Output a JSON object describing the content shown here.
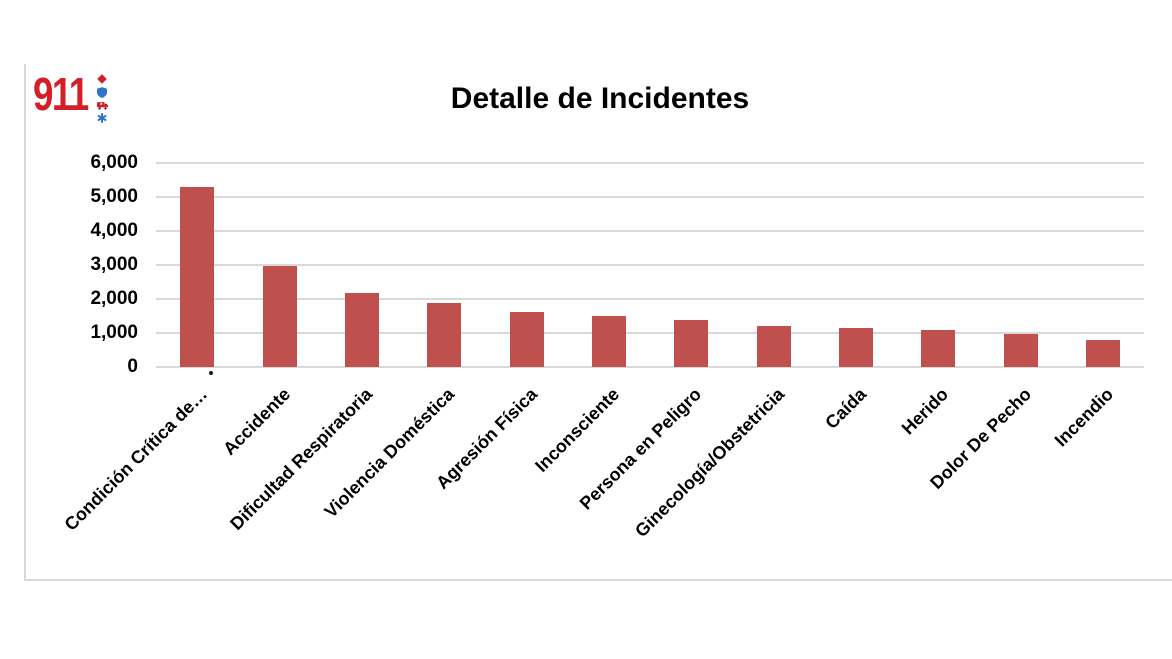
{
  "logo": {
    "text": "911",
    "icons": [
      "diamond-icon",
      "shield-icon",
      "ambulance-icon",
      "asterisk-icon"
    ],
    "colors": {
      "red": "#d41f26",
      "blue": "#2e74c9"
    }
  },
  "chart_data": {
    "type": "bar",
    "title": "Detalle de Incidentes",
    "categories": [
      "Condición Crítica de…",
      "Accidente",
      "Dificultad Respiratoria",
      "Violencia Doméstica",
      "Agresión Física",
      "Inconsciente",
      "Persona en Peligro",
      "Ginecología/Obstetricia",
      "Caída",
      "Herido",
      "Dolor De Pecho",
      "Incendio"
    ],
    "values": [
      5300,
      2980,
      2170,
      1880,
      1620,
      1500,
      1380,
      1210,
      1140,
      1090,
      980,
      790
    ],
    "xlabel": "",
    "ylabel": "",
    "ylim": [
      0,
      6000
    ],
    "ytick_interval": 1000,
    "ytick_labels": [
      "0",
      "1,000",
      "2,000",
      "3,000",
      "4,000",
      "5,000",
      "6,000"
    ],
    "grid": true,
    "legend": false,
    "bar_color": "#c0504d",
    "gridline_color": "#d9d9d9"
  }
}
